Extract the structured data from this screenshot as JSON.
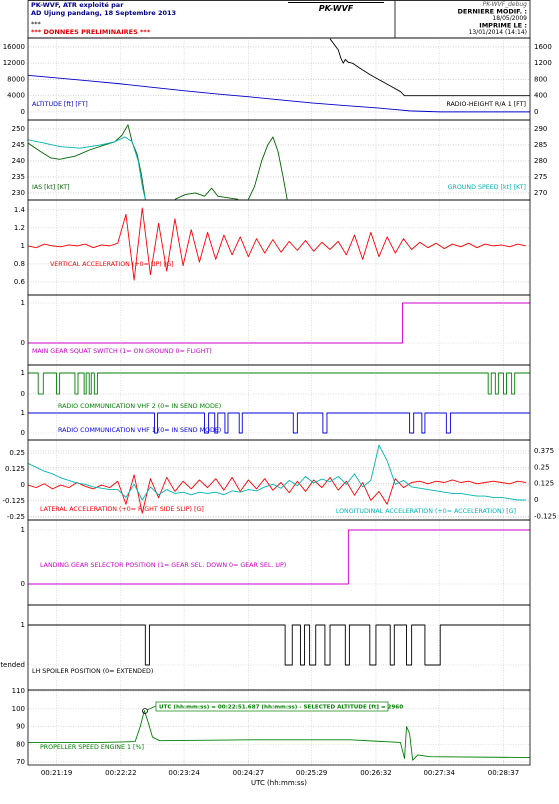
{
  "header": {
    "operator": "PK-WVF, ATR exploité par",
    "location": "AD Ujung pandang, 18 Septembre 2013",
    "stars": "***",
    "status": "*** DONNEES PRELIMINAIRES ***",
    "center_title": "PK-WVF",
    "file": "PK-WVF_debug",
    "modified_label": "DERNIERE MODIF. :",
    "modified_date": "18/05/2009",
    "printed_label": "IMPRIME LE :",
    "printed_date": "13/01/2014 (14:14)"
  },
  "x_axis": {
    "xlabel": "UTC (hh:mm:ss)",
    "xlim": [
      1251,
      1743
    ],
    "xticks": [
      {
        "value": 1279,
        "label": "00:21:19"
      },
      {
        "value": 1342,
        "label": "00:22:22"
      },
      {
        "value": 1404,
        "label": "00:23:24"
      },
      {
        "value": 1467,
        "label": "00:24:27"
      },
      {
        "value": 1529,
        "label": "00:25:29"
      },
      {
        "value": 1592,
        "label": "00:26:32"
      },
      {
        "value": 1654,
        "label": "00:27:34"
      },
      {
        "value": 1717,
        "label": "00:28:37"
      }
    ]
  },
  "chart_data": [
    {
      "type": "line",
      "grid": true,
      "ylim": [
        -2000,
        18200
      ],
      "yticks": [
        0,
        4000,
        8000,
        12000,
        16000
      ],
      "y2lim": [
        -200,
        1820
      ],
      "y2ticks": [
        0,
        400,
        800,
        1200,
        1600
      ],
      "series": [
        {
          "name": "ALTITUDE [ft] [FT]",
          "color": "#0000cc",
          "x": [
            1251,
            1282,
            1313,
            1342,
            1375,
            1405,
            1437,
            1468,
            1500,
            1529,
            1560,
            1592,
            1610,
            1625,
            1655,
            1700,
            1743
          ],
          "values": [
            9000,
            8300,
            7600,
            6900,
            6000,
            5200,
            4400,
            3700,
            2900,
            2200,
            1600,
            1000,
            600,
            250,
            0,
            0,
            0
          ]
        },
        {
          "name": "RADIO-HEIGHT R/A 1 [FT]",
          "color": "#000000",
          "axis": "y2",
          "x": [
            1547,
            1555,
            1558,
            1560,
            1562,
            1565,
            1569,
            1576,
            1586,
            1596,
            1606,
            1616,
            1620,
            1743
          ],
          "values": [
            1800,
            1530,
            1300,
            1200,
            1290,
            1220,
            1200,
            1080,
            920,
            780,
            640,
            500,
            400,
            400
          ]
        }
      ]
    },
    {
      "type": "line",
      "grid": true,
      "ylim": [
        227.8,
        252.8
      ],
      "yticks": [
        230,
        235,
        240,
        245,
        250
      ],
      "y2lim": [
        267.8,
        292.8
      ],
      "y2ticks": [
        270,
        275,
        280,
        285,
        290
      ],
      "series": [
        {
          "name": "IAS [kt] [KT]",
          "color": "#006400",
          "x": [
            1251,
            1263,
            1273,
            1282,
            1297,
            1312,
            1326,
            1336,
            1343,
            1349,
            1353,
            1358,
            1362,
            1366,
            1368,
            1395,
            1405,
            1415,
            1424,
            1431,
            1437,
            1447,
            1457,
            1462,
            1467,
            1473,
            1480,
            1486,
            1491,
            1496,
            1501,
            1505
          ],
          "values": [
            245.6,
            243,
            241,
            240.5,
            241.5,
            243.5,
            245,
            246,
            248,
            251.3,
            246,
            242,
            236,
            228,
            null,
            228,
            229.5,
            230,
            229,
            231.5,
            229,
            228.5,
            228,
            null,
            228,
            232,
            240,
            245,
            247.5,
            243,
            235,
            228
          ]
        },
        {
          "name": "GROUND SPEED [kt] [KT]",
          "color": "#00b4b4",
          "axis": "y2",
          "x": [
            1251,
            1268,
            1282,
            1302,
            1322,
            1336,
            1346,
            1353,
            1359,
            1363,
            1366
          ],
          "values": [
            286.6,
            285.5,
            284.5,
            284,
            285,
            286,
            287.5,
            286,
            280,
            272,
            268
          ]
        }
      ]
    },
    {
      "type": "line",
      "grid": true,
      "ylim": [
        0.455,
        1.509
      ],
      "yticks": [
        0.6,
        0.8,
        1,
        1.2,
        1.4
      ],
      "x": [
        1251,
        1259,
        1267,
        1275,
        1283,
        1291,
        1299,
        1307,
        1315,
        1323,
        1331,
        1339,
        1347,
        1355,
        1363,
        1371,
        1379,
        1387,
        1395,
        1403,
        1411,
        1419,
        1427,
        1435,
        1443,
        1451,
        1459,
        1467,
        1475,
        1483,
        1491,
        1499,
        1507,
        1515,
        1523,
        1531,
        1539,
        1547,
        1555,
        1563,
        1571,
        1579,
        1587,
        1595,
        1603,
        1611,
        1619,
        1627,
        1635,
        1643,
        1651,
        1659,
        1667,
        1675,
        1683,
        1691,
        1699,
        1707,
        1715,
        1723,
        1731,
        1739
      ],
      "series": [
        {
          "name": "VERTICAL ACCELERATION (+0= UP) [G]",
          "color": "#ff0000",
          "values": [
            1.0,
            0.98,
            1.02,
            1.0,
            0.99,
            1.01,
            1.0,
            1.02,
            0.98,
            1.01,
            1.0,
            1.03,
            1.35,
            0.62,
            1.42,
            0.68,
            1.25,
            0.72,
            1.3,
            0.78,
            1.18,
            0.82,
            1.15,
            0.85,
            1.12,
            0.9,
            1.1,
            0.88,
            1.08,
            0.92,
            1.07,
            0.93,
            1.05,
            0.95,
            1.06,
            0.94,
            1.04,
            0.96,
            1.05,
            0.9,
            1.12,
            0.85,
            1.15,
            0.88,
            1.1,
            0.92,
            1.08,
            0.96,
            1.04,
            0.98,
            1.03,
            0.97,
            1.02,
            0.99,
            1.03,
            0.98,
            1.02,
            1.0,
            1.01,
            0.99,
            1.02,
            1.0
          ]
        }
      ]
    },
    {
      "type": "line",
      "grid": true,
      "ylim": [
        -0.55,
        1.2
      ],
      "yticks": [
        0,
        1
      ],
      "series": [
        {
          "name": "MAIN GEAR SQUAT SWITCH (1= ON GROUND   0= FLIGHT)",
          "color": "#cc00cc",
          "x": [
            1251,
            1618,
            1618,
            1743
          ],
          "values": [
            0,
            0,
            1,
            1
          ]
        }
      ]
    },
    {
      "type": "line",
      "grid": true,
      "ylim": [
        -0.52,
        1.38
      ],
      "yticks": [
        0,
        1
      ],
      "series": [
        {
          "name": "RADIO COMMUNICATION VHF 2 (0= IN SEND MODE)",
          "color": "#008000",
          "x": [
            1251,
            1261,
            1261,
            1266,
            1266,
            1279,
            1279,
            1282,
            1282,
            1297,
            1297,
            1300,
            1300,
            1306,
            1306,
            1308,
            1308,
            1311,
            1311,
            1313,
            1313,
            1316,
            1316,
            1319,
            1319,
            1702,
            1702,
            1705,
            1705,
            1709,
            1709,
            1712,
            1712,
            1717,
            1717,
            1720,
            1720,
            1725,
            1725,
            1728,
            1728,
            1743
          ],
          "values": [
            1,
            1,
            0,
            0,
            1,
            1,
            0,
            0,
            1,
            1,
            0,
            0,
            1,
            1,
            0,
            0,
            1,
            1,
            0,
            0,
            1,
            1,
            0,
            0,
            1,
            1,
            0,
            0,
            1,
            1,
            0,
            0,
            1,
            1,
            0,
            0,
            1,
            1,
            0,
            0,
            1,
            1
          ]
        }
      ]
    },
    {
      "type": "line",
      "grid": true,
      "ylim": [
        -0.35,
        1.4
      ],
      "yticks": [
        0,
        1
      ],
      "series": [
        {
          "name": "RADIO COMMUNICATION VHF 1 (0= IN SEND MODE)",
          "color": "#0000dd",
          "x": [
            1251,
            1375,
            1375,
            1378,
            1378,
            1424,
            1424,
            1428,
            1428,
            1434,
            1434,
            1437,
            1437,
            1444,
            1444,
            1447,
            1447,
            1458,
            1458,
            1461,
            1461,
            1511,
            1511,
            1515,
            1515,
            1540,
            1540,
            1544,
            1544,
            1625,
            1625,
            1629,
            1629,
            1637,
            1637,
            1640,
            1640,
            1661,
            1661,
            1665,
            1665,
            1743
          ],
          "values": [
            1,
            1,
            0,
            0,
            1,
            1,
            0,
            0,
            1,
            1,
            0,
            0,
            1,
            1,
            0,
            0,
            1,
            1,
            0,
            0,
            1,
            1,
            0,
            0,
            1,
            1,
            0,
            0,
            1,
            1,
            0,
            0,
            1,
            1,
            0,
            0,
            1,
            1,
            0,
            0,
            1,
            1
          ]
        }
      ]
    },
    {
      "type": "line",
      "grid": true,
      "ylim": [
        -0.273,
        0.352
      ],
      "yticks": [
        -0.25,
        -0.125,
        0,
        0.125,
        0.25
      ],
      "y2lim": [
        -0.153,
        0.459
      ],
      "y2ticks": [
        -0.125,
        0,
        0.125,
        0.25,
        0.375
      ],
      "x": [
        1251,
        1259,
        1267,
        1275,
        1283,
        1291,
        1299,
        1307,
        1315,
        1323,
        1331,
        1339,
        1347,
        1355,
        1363,
        1371,
        1379,
        1387,
        1395,
        1403,
        1411,
        1419,
        1427,
        1435,
        1443,
        1451,
        1459,
        1467,
        1475,
        1483,
        1491,
        1499,
        1507,
        1515,
        1523,
        1531,
        1539,
        1547,
        1555,
        1563,
        1571,
        1579,
        1587,
        1595,
        1603,
        1611,
        1619,
        1627,
        1635,
        1643,
        1651,
        1659,
        1667,
        1675,
        1683,
        1691,
        1699,
        1707,
        1715,
        1723,
        1731,
        1739
      ],
      "series": [
        {
          "name": "LATERAL ACCELERATION (+0= RIGHT SIDE SLIP) [G]",
          "color": "#ff0000",
          "values": [
            0.0,
            -0.02,
            0.01,
            -0.03,
            0.0,
            -0.02,
            0.02,
            -0.01,
            -0.03,
            0.0,
            -0.02,
            0.03,
            -0.15,
            0.08,
            -0.22,
            0.05,
            -0.1,
            0.06,
            -0.05,
            0.03,
            -0.03,
            0.04,
            -0.02,
            0.05,
            -0.04,
            0.06,
            -0.05,
            0.04,
            -0.03,
            0.05,
            -0.04,
            0.02,
            -0.06,
            0.03,
            -0.05,
            0.04,
            -0.02,
            0.06,
            -0.04,
            0.03,
            -0.08,
            0.02,
            -0.12,
            -0.05,
            -0.15,
            0.05,
            -0.02,
            0.02,
            0.03,
            0.01,
            0.03,
            0.02,
            0.04,
            0.02,
            0.03,
            0.01,
            0.02,
            0.03,
            0.02,
            0.01,
            0.03,
            0.02
          ]
        },
        {
          "name": "LONGITUDINAL ACCELERATION (+0= ACCELERATION) [G]",
          "color": "#00b4b4",
          "axis": "y2",
          "values": [
            0.28,
            0.25,
            0.22,
            0.2,
            0.17,
            0.15,
            0.13,
            0.12,
            0.1,
            0.09,
            0.08,
            0.08,
            0.02,
            0.12,
            0.0,
            0.1,
            0.04,
            0.08,
            0.05,
            0.06,
            0.04,
            0.06,
            0.05,
            0.06,
            0.04,
            0.07,
            0.06,
            0.08,
            0.07,
            0.1,
            0.12,
            0.09,
            0.15,
            0.11,
            0.18,
            0.13,
            0.16,
            0.14,
            0.18,
            0.12,
            0.2,
            0.1,
            0.15,
            0.42,
            0.3,
            0.12,
            0.15,
            0.1,
            0.09,
            0.08,
            0.07,
            0.06,
            0.05,
            0.05,
            0.04,
            0.03,
            0.03,
            0.02,
            0.02,
            0.01,
            0.0,
            0.0
          ]
        }
      ]
    },
    {
      "type": "line",
      "grid": true,
      "ylim": [
        -0.389,
        1.185
      ],
      "yticks": [
        0,
        1
      ],
      "series": [
        {
          "name": "LANDING GEAR SELECTOR POSITION (1= GEAR SEL. DOWN   0= GEAR SEL. UP)",
          "color": "#cc00cc",
          "x": [
            1251,
            1565,
            1565,
            1743
          ],
          "values": [
            0,
            0,
            1,
            1
          ]
        }
      ]
    },
    {
      "type": "line",
      "grid": true,
      "ylim": [
        -0.625,
        1.5
      ],
      "yticks": [
        {
          "value": 0,
          "label": "Extended"
        },
        1
      ],
      "series": [
        {
          "name": "LH SPOILER POSITION (0= EXTENDED)",
          "color": "#000000",
          "x": [
            1251,
            1366,
            1366,
            1370,
            1370,
            1503,
            1503,
            1510,
            1510,
            1518,
            1518,
            1522,
            1522,
            1527,
            1527,
            1533,
            1533,
            1542,
            1542,
            1547,
            1547,
            1562,
            1562,
            1566,
            1566,
            1586,
            1586,
            1592,
            1592,
            1606,
            1606,
            1610,
            1610,
            1622,
            1622,
            1627,
            1627,
            1640,
            1640,
            1655,
            1655,
            1743
          ],
          "values": [
            1,
            1,
            0,
            0,
            1,
            1,
            0,
            0,
            1,
            1,
            0,
            0,
            1,
            1,
            0,
            0,
            1,
            1,
            0,
            0,
            1,
            1,
            0,
            0,
            1,
            1,
            0,
            0,
            1,
            1,
            0,
            0,
            1,
            1,
            0,
            0,
            1,
            1,
            0,
            0,
            1,
            1
          ]
        }
      ]
    },
    {
      "type": "line",
      "grid": true,
      "ylim": [
        68.3,
        110.6
      ],
      "yticks": [
        70,
        80,
        90,
        100,
        110
      ],
      "annotation": "UTC (hh:mm:ss) = 00:22:51.687 (hh:mm:ss) - SELECTED ALTITUDE [ft] =  2960",
      "series": [
        {
          "name": "PROPELLER SPEED ENGINE 1 [%]",
          "color": "#008000",
          "x": [
            1251,
            1322,
            1356,
            1361,
            1365,
            1369,
            1373,
            1380,
            1469,
            1567,
            1616,
            1620,
            1622,
            1625,
            1628,
            1633,
            1645,
            1743
          ],
          "values": [
            81,
            81,
            81.5,
            90,
            99,
            92,
            84,
            82,
            82.5,
            82.5,
            81,
            72,
            90,
            86,
            71,
            74,
            73,
            72.5
          ]
        }
      ]
    }
  ]
}
